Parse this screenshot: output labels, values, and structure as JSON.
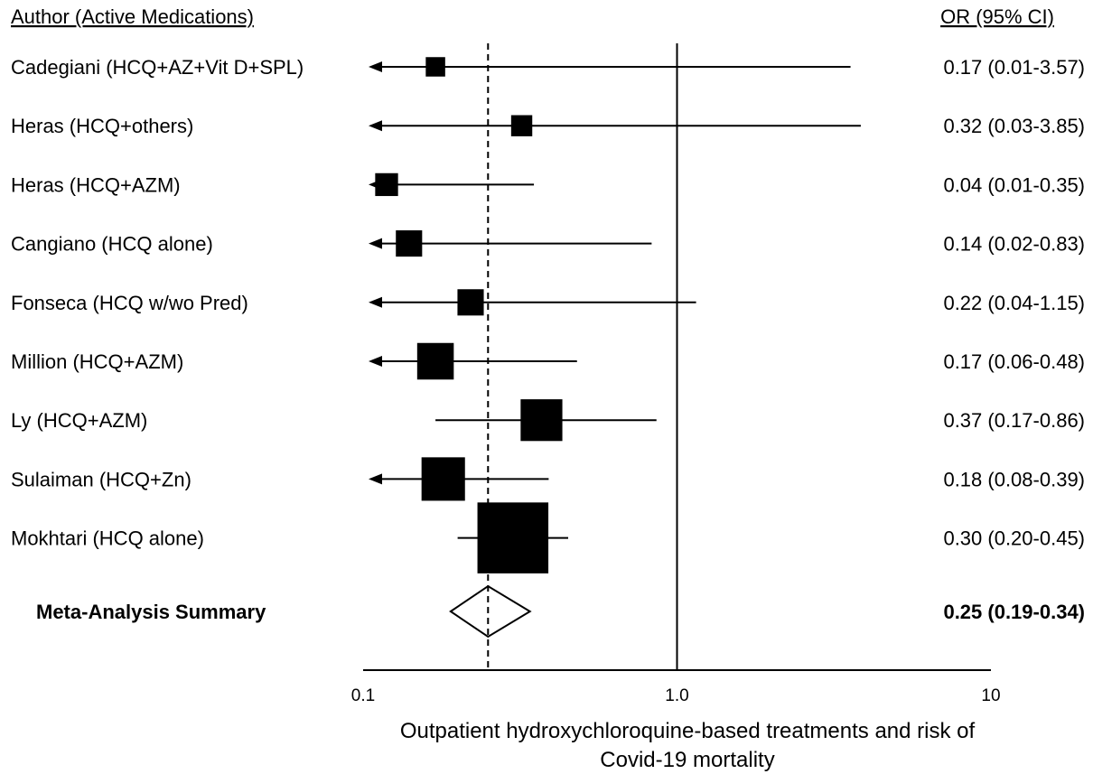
{
  "header": {
    "left": "Author (Active Medications)",
    "right": "OR (95% CI)"
  },
  "chart_data": {
    "type": "forest",
    "scale": "log",
    "xlim": [
      0.1,
      10
    ],
    "x_ticks": [
      "0.1",
      "1.0",
      "10"
    ],
    "reference_line": 1.0,
    "summary_line": 0.25,
    "xlabel_lines": [
      "Outpatient hydroxychloroquine-based treatments and risk of",
      "Covid-19 mortality"
    ],
    "studies": [
      {
        "label": "Cadegiani (HCQ+AZ+Vit D+SPL)",
        "or": 0.17,
        "lo": 0.01,
        "hi": 3.57,
        "ci_text": "0.17 (0.01-3.57)",
        "arrow_left": true,
        "weight": 1
      },
      {
        "label": "Heras (HCQ+others)",
        "or": 0.32,
        "lo": 0.03,
        "hi": 3.85,
        "ci_text": "0.32 (0.03-3.85)",
        "arrow_left": true,
        "weight": 1.2
      },
      {
        "label": "Heras (HCQ+AZM)",
        "or": 0.04,
        "lo": 0.01,
        "hi": 0.35,
        "ci_text": "0.04 (0.01-0.35)",
        "arrow_left": true,
        "weight": 1.4
      },
      {
        "label": "Cangiano (HCQ alone)",
        "or": 0.14,
        "lo": 0.02,
        "hi": 0.83,
        "ci_text": "0.14 (0.02-0.83)",
        "arrow_left": true,
        "weight": 1.8
      },
      {
        "label": "Fonseca (HCQ w/wo Pred)",
        "or": 0.22,
        "lo": 0.04,
        "hi": 1.15,
        "ci_text": "0.22 (0.04-1.15)",
        "arrow_left": true,
        "weight": 1.8
      },
      {
        "label": "Million (HCQ+AZM)",
        "or": 0.17,
        "lo": 0.06,
        "hi": 0.48,
        "ci_text": "0.17 (0.06-0.48)",
        "arrow_left": true,
        "weight": 3
      },
      {
        "label": "Ly (HCQ+AZM)",
        "or": 0.37,
        "lo": 0.17,
        "hi": 0.86,
        "ci_text": "0.37 (0.17-0.86)",
        "arrow_left": false,
        "weight": 3.6
      },
      {
        "label": "Sulaiman (HCQ+Zn)",
        "or": 0.18,
        "lo": 0.08,
        "hi": 0.39,
        "ci_text": "0.18 (0.08-0.39)",
        "arrow_left": true,
        "weight": 3.8
      },
      {
        "label": "Mokhtari (HCQ alone)",
        "or": 0.3,
        "lo": 0.2,
        "hi": 0.45,
        "ci_text": "0.30 (0.20-0.45)",
        "arrow_left": false,
        "weight": 7
      }
    ],
    "summary": {
      "label": "Meta-Analysis Summary",
      "or": 0.25,
      "lo": 0.19,
      "hi": 0.34,
      "ci_text": "0.25 (0.19-0.34)"
    }
  }
}
